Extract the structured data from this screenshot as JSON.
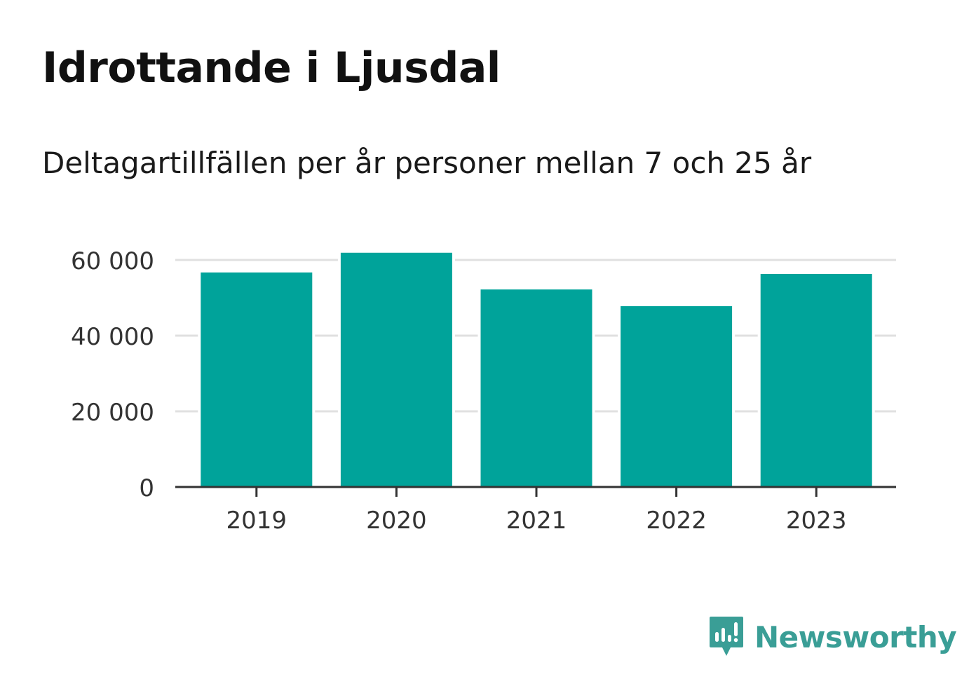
{
  "header": {
    "title": "Idrottande i Ljusdal",
    "subtitle": "Deltagartillfällen per år personer mellan 7 och 25 år"
  },
  "chart_data": {
    "type": "bar",
    "title": "Idrottande i Ljusdal",
    "subtitle": "Deltagartillfällen per år personer mellan 7 och 25 år",
    "categories": [
      "2019",
      "2020",
      "2021",
      "2022",
      "2023"
    ],
    "values": [
      56700,
      61900,
      52200,
      47800,
      56300
    ],
    "ylim": [
      0,
      60000
    ],
    "yticks": [
      0,
      20000,
      40000,
      60000
    ],
    "ytick_labels": [
      "0",
      "20 000",
      "40 000",
      "60 000"
    ],
    "grid": true,
    "bar_color": "#00a39a"
  },
  "brand": {
    "name": "Newsworthy",
    "color": "#3a9e96"
  }
}
